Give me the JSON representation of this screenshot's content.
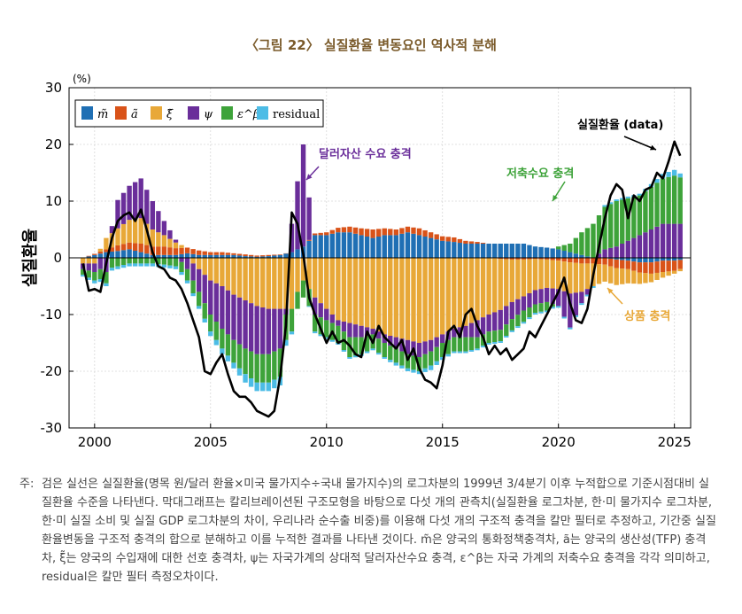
{
  "title": "〈그림 22〉 실질환율 변동요인 역사적 분해",
  "note": {
    "prefix": "주:",
    "text": "검은 실선은 실질환율(명목 원/달러 환율×미국 물가지수÷국내 물가지수)의 로그차분의 1999년 3/4분기 이후 누적합으로 기준시점대비 실질환율 수준을 나타낸다. 막대그래프는 칼리브레이션된 구조모형을 바탕으로 다섯 개의 관측치(실질환율 로그차분, 한·미 물가지수 로그차분, 한·미 실질 소비 및 실질 GDP 로그차분의 차이, 우리나라 순수출 비중)를 이용해 다섯 개의 구조적 충격을 칼만 필터로 추정하고, 기간중 실질환율변동을 구조적 충격의 합으로 분해하고 이를 누적한 결과를 나타낸 것이다. m̃은 양국의 통화정책충격차, ã는 양국의 생산성(TFP) 충격차, ξ̃는 양국의 수입재에 대한 선호 충격차, ψ는 자국가계의 상대적 달러자산수요 충격, ε^β는 자국 가계의 저축수요 충격을 각각 의미하고, residual은 칼만 필터 측정오차이다."
  },
  "chart_data": {
    "type": "bar",
    "stacked": true,
    "ylabel": "실질환율",
    "yunit": "(%)",
    "ylim": [
      -30,
      30
    ],
    "yticks": [
      -30,
      -20,
      -10,
      0,
      10,
      20,
      30
    ],
    "xlim": [
      1998.9,
      2025.7
    ],
    "xticks": [
      2000,
      2005,
      2010,
      2015,
      2020,
      2025
    ],
    "legend_position": "top-left",
    "series": [
      {
        "key": "m",
        "name": "m̃",
        "color": "#1f6fb4"
      },
      {
        "key": "a",
        "name": "ã",
        "color": "#d95319"
      },
      {
        "key": "xi",
        "name": "ξ̃",
        "color": "#e8a838"
      },
      {
        "key": "psi",
        "name": "ψ",
        "color": "#6a2e9a"
      },
      {
        "key": "eb",
        "name": "ε^β",
        "color": "#3ea33a"
      },
      {
        "key": "res",
        "name": "residual",
        "color": "#4cbce6"
      }
    ],
    "line": {
      "name": "실질환율 (data)",
      "color": "#000000"
    },
    "anchors": {
      "t": [
        1999.5,
        2000.0,
        2000.5,
        2001.0,
        2001.5,
        2002.0,
        2002.5,
        2003.0,
        2003.5,
        2004.0,
        2004.5,
        2005.0,
        2005.5,
        2006.0,
        2006.5,
        2007.0,
        2007.5,
        2008.0,
        2008.5,
        2008.75,
        2009.0,
        2009.5,
        2010.0,
        2010.5,
        2011.0,
        2011.5,
        2012.0,
        2012.5,
        2013.0,
        2013.5,
        2014.0,
        2014.5,
        2015.0,
        2015.5,
        2016.0,
        2016.5,
        2017.0,
        2017.5,
        2018.0,
        2018.5,
        2019.0,
        2019.5,
        2020.0,
        2020.5,
        2021.0,
        2021.5,
        2022.0,
        2022.5,
        2023.0,
        2023.5,
        2024.0,
        2024.5,
        2025.0,
        2025.4
      ],
      "m": [
        0.0,
        0.5,
        1.0,
        1.2,
        1.5,
        1.0,
        0.5,
        0.5,
        0.5,
        0.8,
        0.5,
        0.5,
        0.5,
        0.5,
        0.3,
        0.2,
        0.3,
        0.5,
        1.0,
        1.5,
        2.0,
        4.0,
        4.0,
        4.5,
        4.5,
        4.0,
        3.5,
        4.0,
        4.0,
        4.5,
        4.0,
        3.5,
        3.0,
        2.8,
        2.5,
        2.5,
        2.5,
        2.5,
        2.5,
        2.5,
        2.0,
        1.8,
        1.5,
        1.0,
        0.5,
        0.0,
        0.0,
        -0.3,
        -0.5,
        -0.8,
        -0.8,
        -0.5,
        -0.5,
        -0.3
      ],
      "a": [
        0.0,
        0.2,
        0.5,
        1.0,
        1.2,
        1.5,
        1.5,
        1.5,
        1.2,
        1.0,
        0.8,
        0.5,
        0.5,
        0.3,
        0.3,
        0.2,
        0.2,
        0.1,
        0.0,
        0.0,
        0.0,
        0.3,
        0.5,
        0.8,
        1.0,
        1.2,
        1.5,
        1.2,
        1.0,
        1.0,
        1.2,
        1.0,
        0.8,
        0.8,
        0.5,
        0.3,
        0.0,
        -0.2,
        -0.3,
        -0.3,
        -0.2,
        -0.3,
        -0.5,
        -0.8,
        -1.0,
        -1.0,
        -1.2,
        -1.5,
        -1.5,
        -1.8,
        -2.0,
        -2.0,
        -1.8,
        -1.5
      ],
      "xi": [
        -1.0,
        -1.0,
        2.0,
        3.0,
        4.0,
        4.5,
        3.0,
        2.0,
        1.0,
        0.0,
        -2.0,
        -4.0,
        -5.0,
        -6.5,
        -7.5,
        -8.5,
        -9.0,
        -9.0,
        -9.0,
        -6.0,
        -4.0,
        -7.0,
        -9.0,
        -11.0,
        -11.5,
        -12.0,
        -12.5,
        -13.5,
        -14.0,
        -14.5,
        -15.0,
        -14.5,
        -13.5,
        -12.5,
        -12.0,
        -11.0,
        -10.0,
        -9.0,
        -7.5,
        -6.5,
        -5.5,
        -5.0,
        -5.0,
        -5.5,
        -5.0,
        -4.0,
        -3.0,
        -3.0,
        -2.5,
        -2.0,
        -1.5,
        -1.0,
        -0.5,
        -0.3
      ],
      "psi": [
        -1.0,
        -1.5,
        -2.5,
        5.0,
        6.0,
        7.0,
        5.0,
        2.5,
        0.5,
        -2.0,
        -4.0,
        -6.0,
        -7.5,
        -8.0,
        -8.5,
        -8.5,
        -8.0,
        -7.0,
        5.0,
        12.0,
        18.0,
        -3.0,
        -2.0,
        -1.0,
        -2.5,
        -2.0,
        -1.0,
        -1.5,
        -2.0,
        -2.5,
        -2.5,
        -2.0,
        -1.5,
        -1.5,
        -2.0,
        -3.0,
        -3.0,
        -3.5,
        -3.0,
        -2.5,
        -2.5,
        -2.5,
        -3.0,
        -6.0,
        -2.0,
        0.0,
        1.5,
        2.0,
        3.0,
        4.0,
        5.0,
        6.0,
        6.0,
        6.0
      ],
      "eb": [
        -1.0,
        -1.5,
        -2.0,
        -1.5,
        -1.0,
        -1.0,
        -1.0,
        -1.2,
        -1.5,
        -2.0,
        -2.5,
        -3.0,
        -3.5,
        -4.0,
        -4.5,
        -5.0,
        -5.0,
        -5.0,
        -4.0,
        -3.0,
        -3.0,
        -3.0,
        -3.0,
        -3.0,
        -3.5,
        -3.0,
        -2.5,
        -2.5,
        -2.5,
        -2.5,
        -2.5,
        -2.5,
        -2.5,
        -2.5,
        -2.5,
        -2.0,
        -2.0,
        -2.0,
        -2.0,
        -2.0,
        -1.5,
        -1.5,
        0.5,
        1.5,
        4.0,
        6.0,
        7.5,
        8.0,
        7.5,
        7.0,
        7.5,
        8.0,
        8.5,
        8.0
      ],
      "res": [
        -0.3,
        -0.5,
        -0.5,
        -0.5,
        -0.5,
        -0.5,
        -0.5,
        -0.5,
        -0.5,
        -0.5,
        -0.5,
        -0.8,
        -1.0,
        -1.0,
        -1.5,
        -1.5,
        -1.5,
        -1.5,
        -0.5,
        0.0,
        0.0,
        -0.3,
        -0.3,
        -0.3,
        -0.3,
        -0.3,
        -0.3,
        -0.3,
        -0.5,
        -0.5,
        -0.5,
        -0.8,
        -0.5,
        -0.3,
        -0.3,
        -0.3,
        -0.3,
        -0.3,
        -0.3,
        -0.3,
        -0.3,
        -0.3,
        -0.3,
        -0.3,
        -0.3,
        -0.3,
        0.3,
        0.3,
        0.3,
        0.3,
        0.5,
        0.8,
        1.0,
        0.5
      ]
    },
    "data_line": {
      "t": [
        1999.5,
        1999.75,
        2000.0,
        2000.25,
        2000.5,
        2000.75,
        2001.0,
        2001.25,
        2001.5,
        2001.75,
        2002.0,
        2002.25,
        2002.5,
        2002.75,
        2003.0,
        2003.25,
        2003.5,
        2003.75,
        2004.0,
        2004.25,
        2004.5,
        2004.75,
        2005.0,
        2005.25,
        2005.5,
        2005.75,
        2006.0,
        2006.25,
        2006.5,
        2006.75,
        2007.0,
        2007.25,
        2007.5,
        2007.75,
        2008.0,
        2008.25,
        2008.5,
        2008.75,
        2009.0,
        2009.25,
        2009.5,
        2009.75,
        2010.0,
        2010.25,
        2010.5,
        2010.75,
        2011.0,
        2011.25,
        2011.5,
        2011.75,
        2012.0,
        2012.25,
        2012.5,
        2012.75,
        2013.0,
        2013.25,
        2013.5,
        2013.75,
        2014.0,
        2014.25,
        2014.5,
        2014.75,
        2015.0,
        2015.25,
        2015.5,
        2015.75,
        2016.0,
        2016.25,
        2016.5,
        2016.75,
        2017.0,
        2017.25,
        2017.5,
        2017.75,
        2018.0,
        2018.25,
        2018.5,
        2018.75,
        2019.0,
        2019.25,
        2019.5,
        2019.75,
        2020.0,
        2020.25,
        2020.5,
        2020.75,
        2021.0,
        2021.25,
        2021.5,
        2021.75,
        2022.0,
        2022.25,
        2022.5,
        2022.75,
        2023.0,
        2023.25,
        2023.5,
        2023.75,
        2024.0,
        2024.25,
        2024.5,
        2024.75,
        2025.0,
        2025.25
      ],
      "v": [
        -1.0,
        -5.8,
        -5.5,
        -6.0,
        -1.0,
        3.5,
        6.5,
        7.5,
        8.0,
        6.5,
        8.5,
        5.0,
        1.0,
        -1.5,
        -2.0,
        -3.5,
        -4.0,
        -5.5,
        -8.0,
        -11.0,
        -14.0,
        -20.0,
        -20.5,
        -18.5,
        -17.0,
        -20.5,
        -23.5,
        -24.5,
        -24.5,
        -25.5,
        -27.0,
        -27.5,
        -28.0,
        -27.0,
        -21.0,
        -12.0,
        8.0,
        6.0,
        0.5,
        -7.0,
        -10.0,
        -12.5,
        -15.0,
        -13.0,
        -15.0,
        -14.5,
        -15.5,
        -17.0,
        -17.5,
        -13.0,
        -15.0,
        -12.0,
        -14.0,
        -15.0,
        -16.0,
        -14.5,
        -18.0,
        -16.0,
        -19.5,
        -21.5,
        -22.0,
        -23.0,
        -19.0,
        -13.0,
        -12.0,
        -14.0,
        -10.0,
        -9.0,
        -12.0,
        -14.0,
        -17.0,
        -15.5,
        -17.0,
        -16.0,
        -18.0,
        -17.0,
        -16.0,
        -13.0,
        -14.0,
        -12.0,
        -10.0,
        -8.0,
        -6.0,
        -3.5,
        -8.0,
        -11.0,
        -11.5,
        -9.0,
        -3.0,
        2.0,
        7.0,
        11.0,
        13.0,
        12.0,
        7.0,
        11.0,
        10.0,
        12.0,
        12.5,
        15.0,
        14.0,
        17.0,
        20.5,
        18.0
      ]
    }
  },
  "annotations": {
    "dollar": "달러자산 수요 충격",
    "saving": "저축수요 충격",
    "goods": "상품 충격",
    "data": "실질환율 (data)"
  }
}
